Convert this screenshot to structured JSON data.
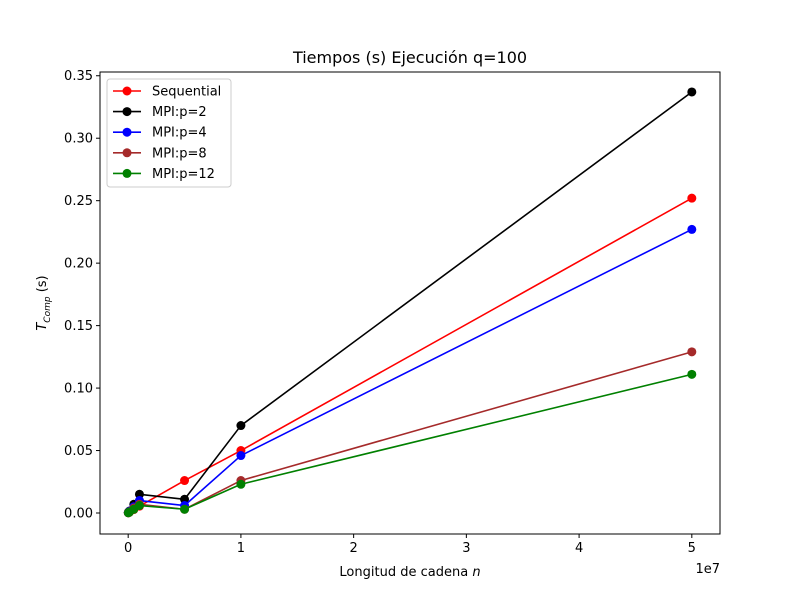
{
  "chart_data": {
    "type": "line",
    "title": "Tiempos (s) Ejecución q=100",
    "xlabel_main": "Longitud de cadena ",
    "xlabel_italic": "n",
    "ylabel_base": "T",
    "ylabel_sub": "Comp",
    "ylabel_unit": " (s)",
    "x_offset_text": "1e7",
    "xlim": [
      -2500000,
      52500000
    ],
    "ylim": [
      -0.0168,
      0.353
    ],
    "x_ticks": [
      0,
      10000000,
      20000000,
      30000000,
      40000000,
      50000000
    ],
    "x_tick_labels": [
      "0",
      "1",
      "2",
      "3",
      "4",
      "5"
    ],
    "y_ticks": [
      0.0,
      0.05,
      0.1,
      0.15,
      0.2,
      0.25,
      0.3,
      0.35
    ],
    "y_tick_labels": [
      "0.00",
      "0.05",
      "0.10",
      "0.15",
      "0.20",
      "0.25",
      "0.30",
      "0.35"
    ],
    "grid": false,
    "legend_position": "upper-left",
    "x": [
      10000,
      100000,
      500000,
      1000000,
      5000000,
      10000000,
      50000000
    ],
    "series": [
      {
        "name": "Sequential",
        "color": "#ff0000",
        "values": [
          0.0002,
          0.0006,
          0.0028,
          0.0055,
          0.026,
          0.05,
          0.252
        ]
      },
      {
        "name": "MPI:p=2",
        "color": "#000000",
        "values": [
          0.0005,
          0.0015,
          0.007,
          0.015,
          0.011,
          0.07,
          0.337
        ]
      },
      {
        "name": "MPI:p=4",
        "color": "#0000ff",
        "values": [
          0.0003,
          0.0012,
          0.005,
          0.01,
          0.006,
          0.046,
          0.227
        ]
      },
      {
        "name": "MPI:p=8",
        "color": "#a52a2a",
        "values": [
          0.0002,
          0.0008,
          0.004,
          0.007,
          0.003,
          0.026,
          0.129
        ]
      },
      {
        "name": "MPI:p=12",
        "color": "#008000",
        "values": [
          0.0002,
          0.0007,
          0.003,
          0.006,
          0.003,
          0.023,
          0.111
        ]
      }
    ]
  }
}
